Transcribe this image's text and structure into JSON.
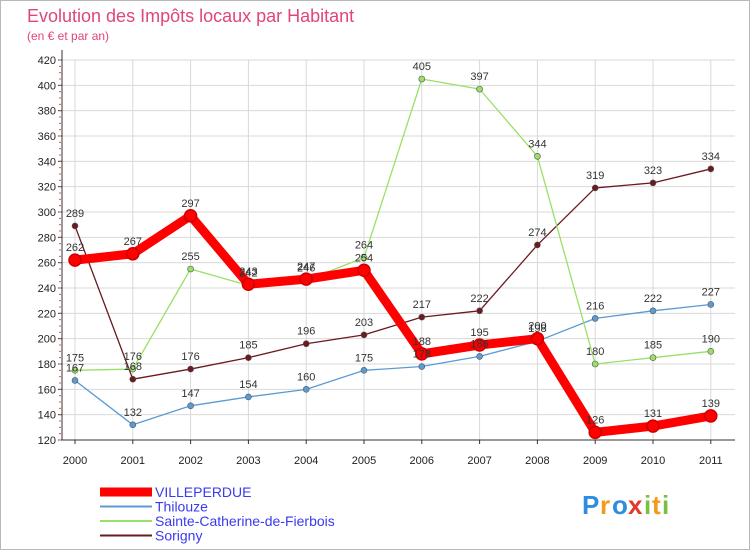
{
  "chart_data": {
    "type": "line",
    "title": "Evolution des Impôts locaux par Habitant",
    "subtitle": "(en € et par an)",
    "xlabel": "",
    "ylabel": "",
    "ylim": [
      120,
      420
    ],
    "yticks": [
      120,
      140,
      160,
      180,
      200,
      220,
      240,
      260,
      280,
      300,
      320,
      340,
      360,
      380,
      400,
      420
    ],
    "categories": [
      "2000",
      "2001",
      "2002",
      "2003",
      "2004",
      "2005",
      "2006",
      "2007",
      "2008",
      "2009",
      "2010",
      "2011"
    ],
    "grid": true,
    "legend_position": "bottom-left",
    "series": [
      {
        "name": "Sorigny",
        "color": "#6b1a1f",
        "values": [
          289,
          168,
          176,
          185,
          196,
          203,
          217,
          222,
          274,
          319,
          323,
          334
        ]
      },
      {
        "name": "Thilouze",
        "color": "#5b9bd5",
        "values": [
          167,
          132,
          147,
          154,
          160,
          175,
          178,
          186,
          198,
          216,
          222,
          227
        ]
      },
      {
        "name": "Sainte-Catherine-de-Fierbois",
        "color": "#99e066",
        "values": [
          175,
          176,
          255,
          242,
          246,
          264,
          405,
          397,
          344,
          180,
          185,
          190
        ]
      },
      {
        "name": "VILLEPERDUE",
        "color": "#ff0000",
        "values": [
          262,
          267,
          297,
          243,
          247,
          254,
          188,
          195,
          200,
          126,
          131,
          139
        ]
      }
    ]
  },
  "brand": {
    "letters": [
      "P",
      "r",
      "o",
      "x",
      "i",
      "t",
      "i"
    ]
  }
}
